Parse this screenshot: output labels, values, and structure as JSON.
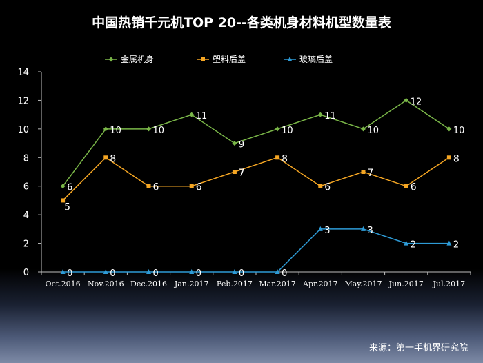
{
  "chart_data": {
    "type": "line",
    "title": "中国热销千元机TOP 20--各类机身材料机型数量表",
    "categories": [
      "Oct.2016",
      "Nov.2016",
      "Dec.2016",
      "Jan.2017",
      "Feb.2017",
      "Mar.2017",
      "Apr.2017",
      "May.2017",
      "Jun.2017",
      "Jul.2017"
    ],
    "series": [
      {
        "name": "金属机身",
        "values": [
          6,
          10,
          10,
          11,
          9,
          10,
          11,
          10,
          12,
          10
        ],
        "color": "#7ab648",
        "marker": "diamond"
      },
      {
        "name": "塑料后盖",
        "values": [
          5,
          8,
          6,
          6,
          7,
          8,
          6,
          7,
          6,
          8
        ],
        "color": "#f5a623",
        "marker": "square"
      },
      {
        "name": "玻璃后盖",
        "values": [
          0,
          0,
          0,
          0,
          0,
          0,
          3,
          3,
          2,
          2
        ],
        "color": "#2e9bd6",
        "marker": "triangle"
      }
    ],
    "ylim": [
      0,
      14
    ],
    "yticks": [
      0,
      2,
      4,
      6,
      8,
      10,
      12,
      14
    ],
    "xlabel": "",
    "ylabel": "",
    "legend": "top",
    "grid": false
  },
  "source_note": "来源：第一手机界研究院"
}
